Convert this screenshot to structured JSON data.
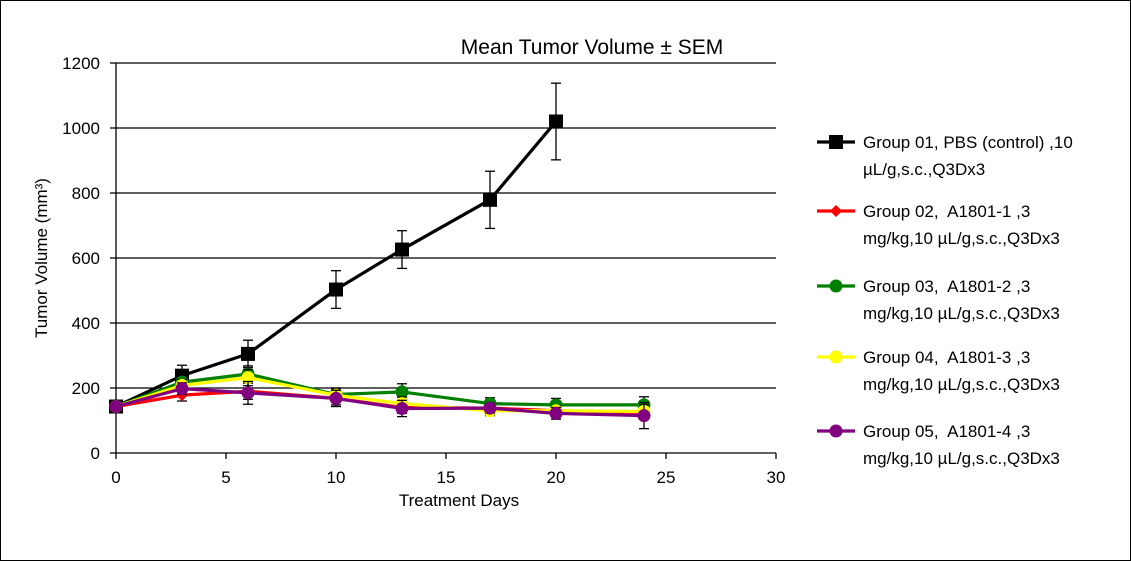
{
  "chart_data": {
    "type": "line",
    "title": "Mean Tumor Volume ± SEM",
    "xlabel": "Treatment Days",
    "ylabel": "Tumor Volume (mm³)",
    "xlim": [
      0,
      30
    ],
    "ylim": [
      0,
      1200
    ],
    "xticks": [
      0,
      5,
      10,
      15,
      20,
      25,
      30
    ],
    "yticks": [
      0,
      200,
      400,
      600,
      800,
      1000,
      1200
    ],
    "grid": "horizontal",
    "legend_position": "right",
    "series": [
      {
        "name": "Group 01, PBS (control) ,10 µL/g,s.c.,Q3Dx3",
        "legend_lines": [
          "Group 01, PBS (control) ,10",
          "µL/g,s.c.,Q3Dx3"
        ],
        "color": "#000000",
        "marker": "square",
        "x": [
          0,
          3,
          6,
          10,
          13,
          17,
          20
        ],
        "y": [
          143,
          238,
          305,
          503,
          626,
          779,
          1020
        ],
        "err": [
          12,
          32,
          42,
          58,
          58,
          88,
          118
        ]
      },
      {
        "name": "Group 02, A1801-1 ,3 mg/kg,10 µL/g,s.c.,Q3Dx3",
        "legend_lines": [
          "Group 02,  A1801-1 ,3",
          "mg/kg,10 µL/g,s.c.,Q3Dx3"
        ],
        "color": "#ff0000",
        "marker": "diamond",
        "x": [
          0,
          3,
          6,
          10,
          13,
          17,
          20,
          24
        ],
        "y": [
          143,
          178,
          190,
          168,
          140,
          138,
          130,
          125
        ],
        "err": [
          10,
          18,
          25,
          20,
          18,
          15,
          15,
          20
        ]
      },
      {
        "name": "Group 03, A1801-2 ,3 mg/kg,10 µL/g,s.c.,Q3Dx3",
        "legend_lines": [
          "Group 03,  A1801-2 ,3",
          "mg/kg,10 µL/g,s.c.,Q3Dx3"
        ],
        "color": "#008000",
        "marker": "circle",
        "x": [
          0,
          3,
          6,
          10,
          13,
          17,
          20,
          24
        ],
        "y": [
          143,
          218,
          243,
          180,
          188,
          152,
          148,
          148
        ],
        "err": [
          10,
          20,
          25,
          20,
          25,
          18,
          20,
          25
        ]
      },
      {
        "name": "Group 04, A1801-3 ,3 mg/kg,10 µL/g,s.c.,Q3Dx3",
        "legend_lines": [
          "Group 04,  A1801-3 ,3",
          "mg/kg,10 µL/g,s.c.,Q3Dx3"
        ],
        "color": "#ffff00",
        "marker": "circle",
        "x": [
          0,
          3,
          6,
          10,
          13,
          17,
          20,
          24
        ],
        "y": [
          143,
          208,
          232,
          178,
          152,
          130,
          130,
          128
        ],
        "err": [
          10,
          18,
          25,
          20,
          20,
          15,
          15,
          20
        ]
      },
      {
        "name": "Group 05, A1801-4 ,3 mg/kg,10 µL/g,s.c.,Q3Dx3",
        "legend_lines": [
          "Group 05,  A1801-4 ,3",
          "mg/kg,10 µL/g,s.c.,Q3Dx3"
        ],
        "color": "#800080",
        "marker": "circle",
        "x": [
          0,
          3,
          6,
          10,
          13,
          17,
          20,
          24
        ],
        "y": [
          143,
          198,
          185,
          168,
          137,
          138,
          122,
          115
        ],
        "err": [
          10,
          18,
          35,
          25,
          25,
          15,
          18,
          40
        ]
      }
    ]
  }
}
